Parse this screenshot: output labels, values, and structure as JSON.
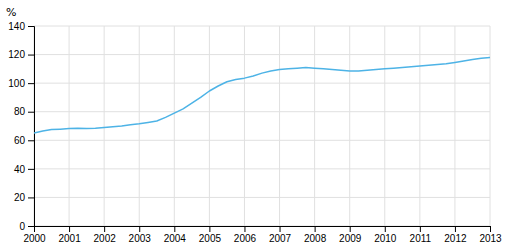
{
  "chart_data": {
    "type": "line",
    "ylabel": "%",
    "x": [
      2000.0,
      2000.25,
      2000.5,
      2000.75,
      2001.0,
      2001.25,
      2001.5,
      2001.75,
      2002.0,
      2002.25,
      2002.5,
      2002.75,
      2003.0,
      2003.25,
      2003.5,
      2003.75,
      2004.0,
      2004.25,
      2004.5,
      2004.75,
      2005.0,
      2005.25,
      2005.5,
      2005.75,
      2006.0,
      2006.25,
      2006.5,
      2006.75,
      2007.0,
      2007.25,
      2007.5,
      2007.75,
      2008.0,
      2008.25,
      2008.5,
      2008.75,
      2009.0,
      2009.25,
      2009.5,
      2009.75,
      2010.0,
      2010.25,
      2010.5,
      2010.75,
      2011.0,
      2011.25,
      2011.5,
      2011.75,
      2012.0,
      2012.25,
      2012.5,
      2012.75,
      2013.0
    ],
    "values": [
      65.0,
      66.5,
      67.5,
      67.8,
      68.2,
      68.5,
      68.3,
      68.5,
      69.0,
      69.5,
      70.0,
      70.8,
      71.5,
      72.5,
      73.5,
      76.0,
      79.0,
      82.0,
      86.0,
      90.0,
      94.5,
      98.0,
      101.0,
      102.5,
      103.5,
      105.0,
      107.0,
      108.5,
      109.5,
      110.0,
      110.5,
      111.0,
      110.5,
      110.0,
      109.5,
      109.0,
      108.5,
      108.5,
      109.0,
      109.5,
      110.0,
      110.5,
      111.0,
      111.5,
      112.0,
      112.5,
      113.0,
      113.5,
      114.5,
      115.5,
      116.5,
      117.5,
      118.0
    ],
    "color": "#4db3e6",
    "xlim": [
      2000,
      2013
    ],
    "ylim": [
      0,
      140
    ],
    "xticks": [
      2000,
      2001,
      2002,
      2003,
      2004,
      2005,
      2006,
      2007,
      2008,
      2009,
      2010,
      2011,
      2012,
      2013
    ],
    "yticks": [
      0,
      20,
      40,
      60,
      80,
      100,
      120,
      140
    ],
    "grid": true
  }
}
